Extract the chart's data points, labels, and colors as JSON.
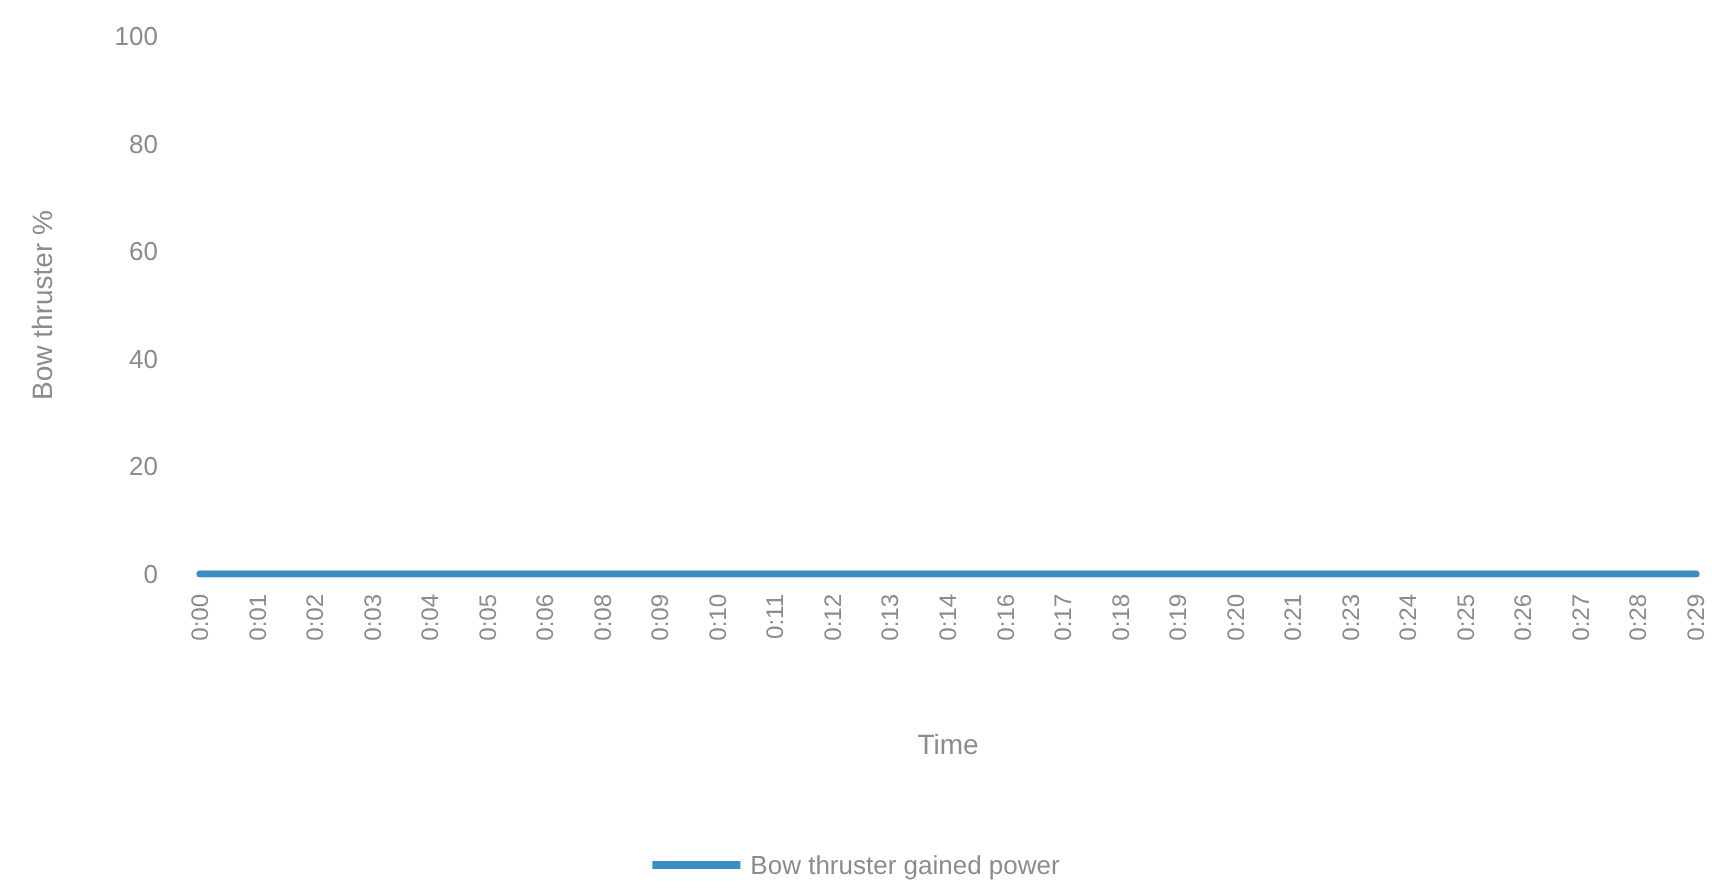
{
  "chart_data": {
    "type": "line",
    "xlabel": "Time",
    "ylabel": "Bow thruster %",
    "categories": [
      "0:00",
      "0:01",
      "0:02",
      "0:03",
      "0:04",
      "0:05",
      "0:06",
      "0:08",
      "0:09",
      "0:10",
      "0:11",
      "0:12",
      "0:13",
      "0:14",
      "0:16",
      "0:17",
      "0:18",
      "0:19",
      "0:20",
      "0:21",
      "0:23",
      "0:24",
      "0:25",
      "0:26",
      "0:27",
      "0:28",
      "0:29"
    ],
    "series": [
      {
        "name": "Bow thruster gained power",
        "color": "#3a8fc0",
        "values": [
          0,
          0,
          0,
          0,
          0,
          0,
          0,
          0,
          0,
          0,
          0,
          0,
          0,
          0,
          0,
          0,
          0,
          0,
          0,
          0,
          0,
          0,
          0,
          0,
          0,
          0,
          0
        ]
      }
    ],
    "ylim": [
      0,
      100
    ],
    "yticks": [
      0,
      20,
      40,
      60,
      80,
      100
    ],
    "grid": false,
    "legend": "bottom",
    "marker": "none",
    "line_style": "solid"
  }
}
